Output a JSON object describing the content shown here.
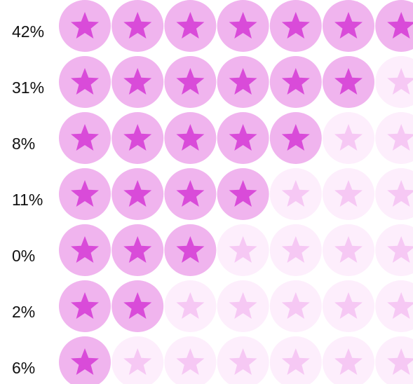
{
  "rows": [
    {
      "label": "42%",
      "rating": 7
    },
    {
      "label": "31%",
      "rating": 6
    },
    {
      "label": "8%",
      "rating": 5
    },
    {
      "label": "11%",
      "rating": 4
    },
    {
      "label": "0%",
      "rating": 3
    },
    {
      "label": "2%",
      "rating": 2
    },
    {
      "label": "6%",
      "rating": 1
    }
  ],
  "max_rating": 7,
  "colors": {
    "filled_circle": "#f0b4ee",
    "filled_star": "#d94bd9",
    "empty_circle": "#fdeefc",
    "empty_star": "#f6c8f4"
  }
}
